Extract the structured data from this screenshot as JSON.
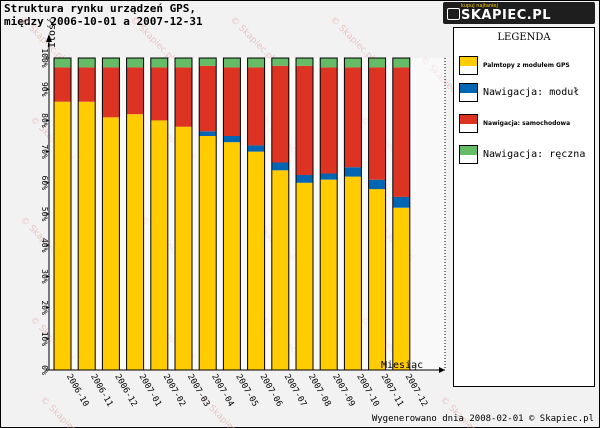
{
  "header": {
    "title_line1": "Struktura rynku urządzeń GPS,",
    "title_line2": "między 2006-10-01 a 2007-12-31"
  },
  "logo": {
    "tagline": "kupuj najtaniej",
    "text": "SKAPIEC.PL"
  },
  "watermark": "© Skapiec.pl",
  "footer": "Wygenerowano dnia 2008-02-01 © Skapiec.pl",
  "legend": {
    "title": "LEGENDA"
  },
  "chart_data": {
    "type": "bar",
    "stacked": true,
    "ylabel": "Ilość",
    "xlabel": "Miesiąc",
    "ylim": [
      0,
      100
    ],
    "yticks": [
      "0%",
      "10%",
      "20%",
      "30%",
      "40%",
      "50%",
      "60%",
      "70%",
      "80%",
      "90%",
      "100%"
    ],
    "categories": [
      "2006-10",
      "2006-11",
      "2006-12",
      "2007-01",
      "2007-02",
      "2007-03",
      "2007-04",
      "2007-05",
      "2007-06",
      "2007-07",
      "2007-08",
      "2007-09",
      "2007-10",
      "2007-11",
      "2007-12"
    ],
    "series": [
      {
        "name": "Palmtopy z modułem GPS",
        "color": "#ffcc00",
        "legend_style": "small",
        "values": [
          86,
          86,
          81,
          82,
          80,
          78,
          75,
          73,
          70,
          64,
          60,
          61,
          62,
          58,
          52
        ]
      },
      {
        "name": "Nawigacja: moduł",
        "color": "#0066b3",
        "legend_style": "big",
        "values": [
          0,
          0,
          0,
          0,
          0,
          0,
          1.5,
          2,
          2,
          2.5,
          2.5,
          2,
          3,
          3,
          3.5
        ]
      },
      {
        "name": "Nawigacja: samochodowa",
        "color": "#dd3322",
        "legend_style": "small",
        "values": [
          11,
          11,
          16,
          15,
          17,
          19,
          21,
          22,
          25,
          31,
          35,
          34,
          32,
          36,
          41.5
        ]
      },
      {
        "name": "Nawigacja: ręczna",
        "color": "#66bb66",
        "legend_style": "big",
        "values": [
          3,
          3,
          3,
          3,
          3,
          3,
          2.5,
          3,
          3,
          2.5,
          2.5,
          3,
          3,
          3,
          3
        ]
      }
    ],
    "grid": false,
    "legend_position": "right"
  }
}
